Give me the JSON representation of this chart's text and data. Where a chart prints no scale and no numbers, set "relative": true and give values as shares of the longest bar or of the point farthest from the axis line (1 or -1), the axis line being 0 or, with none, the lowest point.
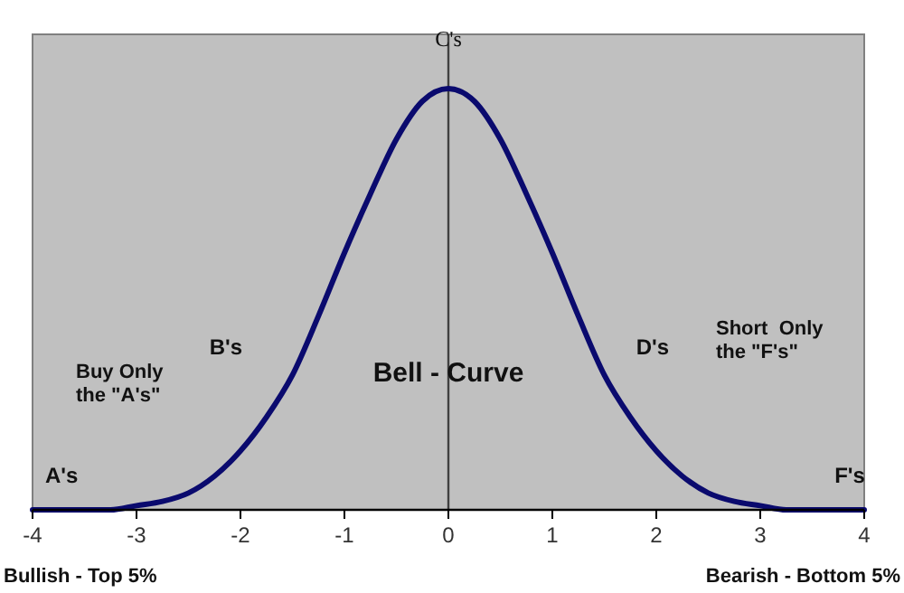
{
  "chart_data": {
    "type": "line",
    "title": "Bell - Curve",
    "relative": true,
    "x": [
      -4,
      -3.75,
      -3.5,
      -3.25,
      -3,
      -2.75,
      -2.5,
      -2.25,
      -2,
      -1.75,
      -1.5,
      -1.25,
      -1,
      -0.75,
      -0.5,
      -0.25,
      0,
      0.25,
      0.5,
      0.75,
      1,
      1.25,
      1.5,
      1.75,
      2,
      2.25,
      2.5,
      2.75,
      3,
      3.25,
      3.5,
      3.75,
      4
    ],
    "series": [
      {
        "color": "#0a0a6e",
        "values": [
          0,
          0,
          0,
          0,
          0.01,
          0.02,
          0.04,
          0.08,
          0.14,
          0.22,
          0.32,
          0.46,
          0.61,
          0.75,
          0.88,
          0.97,
          1,
          0.97,
          0.88,
          0.75,
          0.61,
          0.46,
          0.32,
          0.22,
          0.14,
          0.08,
          0.04,
          0.02,
          0.01,
          0,
          0,
          0,
          0
        ]
      }
    ],
    "xlim": [
      -4,
      4
    ],
    "xticks": [
      -4,
      -3,
      -2,
      -1,
      0,
      1,
      2,
      3,
      4
    ],
    "ref_lines": [
      {
        "axis": "x",
        "value": 0,
        "color": "#404040"
      }
    ],
    "grid": false,
    "marker": "none",
    "line_style": "solid",
    "tick_labels": "x",
    "annotations": [
      {
        "text": "C's",
        "x": 0,
        "y": 1.1
      },
      "A's",
      "B's",
      "D's",
      "F's",
      "Buy Only\nthe \"A's\"",
      "Short  Only\nthe \"F's\"",
      "Bullish - Top 5%",
      "Bearish - Bottom 5%"
    ]
  }
}
